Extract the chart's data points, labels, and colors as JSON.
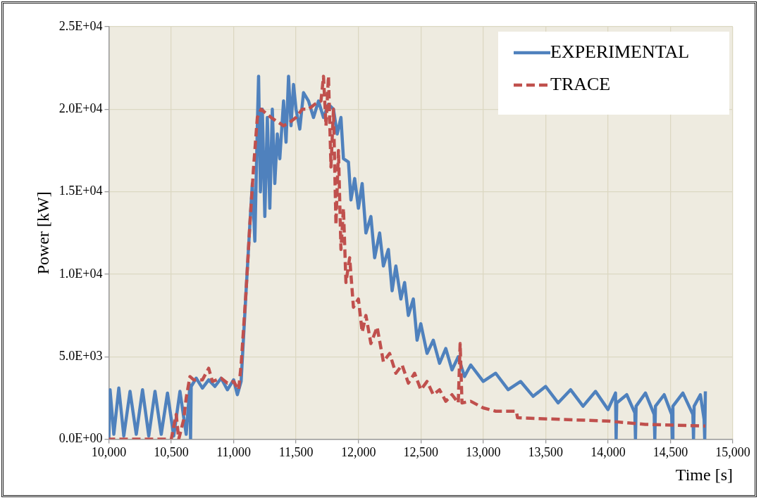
{
  "chart_data": {
    "type": "line",
    "xlabel": "Time [s]",
    "ylabel": "Power [kW]",
    "xlim": [
      10000,
      15000
    ],
    "xticks": [
      {
        "value": 10000,
        "label": "10,000"
      },
      {
        "value": 10500,
        "label": "10,500"
      },
      {
        "value": 11000,
        "label": "11,000"
      },
      {
        "value": 11500,
        "label": "11,500"
      },
      {
        "value": 12000,
        "label": "12,000"
      },
      {
        "value": 12500,
        "label": "12,500"
      },
      {
        "value": 13000,
        "label": "13,000"
      },
      {
        "value": 13500,
        "label": "13,500"
      },
      {
        "value": 14000,
        "label": "14,000"
      },
      {
        "value": 14500,
        "label": "14,500"
      },
      {
        "value": 15000,
        "label": "15,000"
      }
    ],
    "ylim": [
      0,
      25000
    ],
    "yticks": [
      {
        "value": 0,
        "label": "0.0E+00"
      },
      {
        "value": 5000,
        "label": "5.0E+03"
      },
      {
        "value": 10000,
        "label": "1.0E+04"
      },
      {
        "value": 15000,
        "label": "1.5E+04"
      },
      {
        "value": 20000,
        "label": "2.0E+04"
      },
      {
        "value": 25000,
        "label": "2.5E+04"
      }
    ],
    "grid": true,
    "legend": "top right",
    "marker": "none",
    "series": [
      {
        "name": "EXPERIMENTAL",
        "color": "#4f81bd",
        "line_style": "solid",
        "x": [
          10000,
          10010,
          10040,
          10080,
          10120,
          10170,
          10220,
          10270,
          10320,
          10370,
          10420,
          10470,
          10520,
          10570,
          10620,
          10650,
          10655,
          10660,
          10700,
          10750,
          10800,
          10850,
          10900,
          10950,
          11000,
          11030,
          11060,
          11100,
          11130,
          11150,
          11170,
          11190,
          11200,
          11215,
          11230,
          11250,
          11270,
          11290,
          11310,
          11330,
          11350,
          11370,
          11400,
          11420,
          11440,
          11460,
          11480,
          11500,
          11530,
          11560,
          11600,
          11640,
          11680,
          11720,
          11760,
          11800,
          11830,
          11860,
          11880,
          11920,
          11940,
          11970,
          12000,
          12030,
          12060,
          12100,
          12130,
          12170,
          12200,
          12240,
          12270,
          12300,
          12340,
          12370,
          12400,
          12440,
          12470,
          12500,
          12550,
          12600,
          12650,
          12700,
          12750,
          12800,
          12850,
          12900,
          13000,
          13100,
          13200,
          13300,
          13400,
          13500,
          13600,
          13700,
          13800,
          13900,
          14000,
          14060,
          14065,
          14070,
          14150,
          14215,
          14220,
          14225,
          14300,
          14370,
          14375,
          14380,
          14450,
          14510,
          14515,
          14520,
          14600,
          14680,
          14685,
          14690,
          14740,
          14770,
          14775,
          14780
        ],
        "values": [
          0,
          3000,
          300,
          3100,
          200,
          2900,
          300,
          3000,
          200,
          2900,
          300,
          2800,
          200,
          2900,
          300,
          3300,
          0,
          3200,
          3700,
          3100,
          3600,
          3200,
          3700,
          3000,
          3600,
          2700,
          3500,
          9000,
          13000,
          15500,
          12000,
          19000,
          22000,
          15000,
          20000,
          13500,
          19500,
          14000,
          20000,
          15500,
          18500,
          17000,
          20500,
          18000,
          22000,
          19000,
          21500,
          20000,
          18800,
          21000,
          20500,
          19500,
          20500,
          19500,
          20300,
          20000,
          18500,
          19500,
          17000,
          16800,
          14500,
          15800,
          14000,
          15500,
          12500,
          13500,
          11000,
          12500,
          10500,
          11500,
          9000,
          10500,
          8500,
          9500,
          7500,
          8500,
          6000,
          7000,
          5200,
          6000,
          4600,
          5500,
          4200,
          5000,
          3800,
          4500,
          3500,
          4000,
          3000,
          3500,
          2600,
          3200,
          2200,
          3000,
          2000,
          2900,
          1800,
          2800,
          0,
          2200,
          2700,
          1600,
          0,
          2000,
          2800,
          1500,
          0,
          2000,
          2700,
          1500,
          0,
          2000,
          2800,
          1500,
          0,
          2000,
          2700,
          1200,
          0,
          2900
        ]
      },
      {
        "name": "TRACE",
        "color": "#c0504d",
        "line_style": "dashed",
        "x": [
          10000,
          10500,
          10540,
          10560,
          10600,
          10620,
          10650,
          10680,
          10750,
          10800,
          10830,
          10900,
          10950,
          11000,
          11040,
          11060,
          11100,
          11130,
          11160,
          11190,
          11220,
          11300,
          11400,
          11450,
          11500,
          11550,
          11600,
          11650,
          11700,
          11720,
          11740,
          11760,
          11780,
          11800,
          11820,
          11840,
          11860,
          11880,
          11900,
          11930,
          11960,
          12000,
          12030,
          12060,
          12100,
          12150,
          12200,
          12250,
          12300,
          12350,
          12400,
          12450,
          12500,
          12550,
          12600,
          12650,
          12700,
          12750,
          12800,
          12815,
          12830,
          12900,
          13000,
          13100,
          13265,
          13275,
          14000,
          14300,
          14780
        ],
        "values": [
          0,
          0,
          1500,
          0,
          1200,
          2500,
          3800,
          3600,
          3600,
          4300,
          3500,
          3700,
          3400,
          3500,
          3000,
          4500,
          9000,
          13000,
          16500,
          19500,
          20000,
          19500,
          19000,
          19200,
          19500,
          20000,
          20000,
          20300,
          20500,
          22000,
          19000,
          22000,
          16500,
          20000,
          13000,
          17500,
          11500,
          14000,
          9500,
          11000,
          8000,
          8500,
          6500,
          7500,
          5800,
          6800,
          4700,
          5200,
          4000,
          4500,
          3400,
          4000,
          3000,
          3500,
          2700,
          3000,
          2300,
          2700,
          2200,
          5800,
          2200,
          2300,
          1900,
          1700,
          1700,
          1300,
          1100,
          900,
          800
        ]
      }
    ]
  }
}
